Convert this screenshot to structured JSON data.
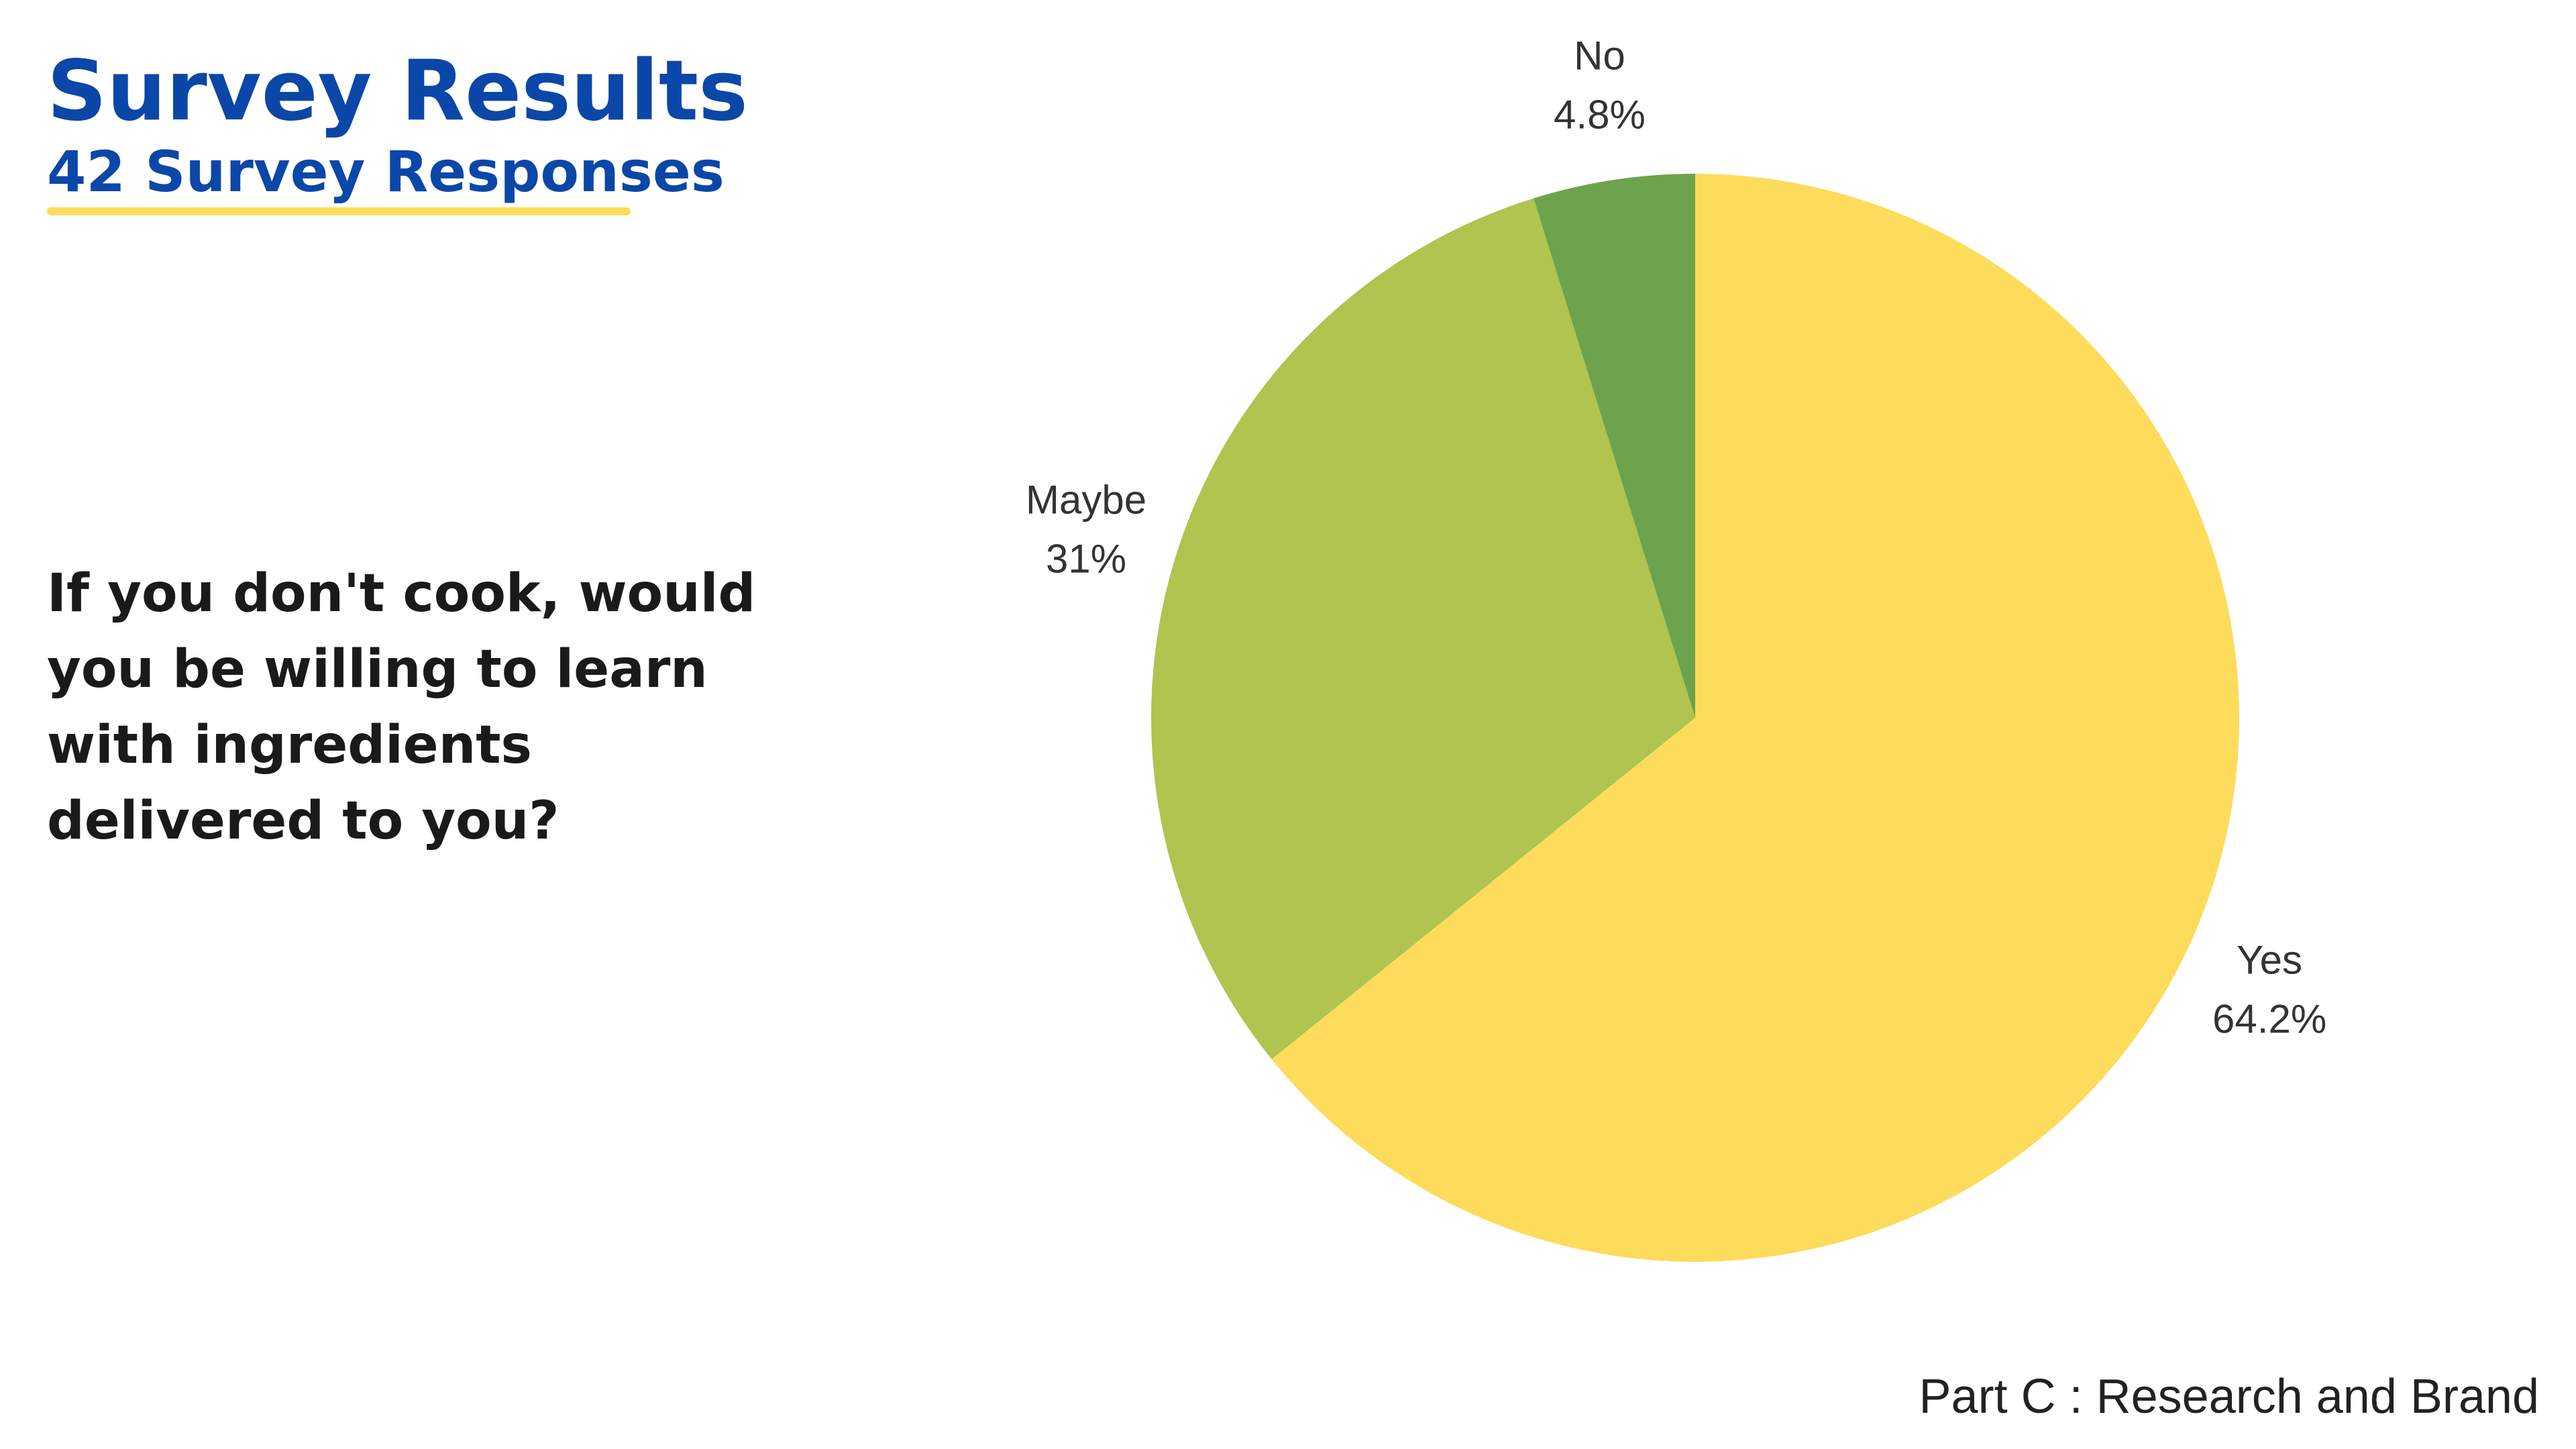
{
  "chart_data": {
    "type": "pie",
    "title": "Survey Results",
    "subtitle": "42 Survey Responses",
    "question": [
      "If you don't cook, would",
      "you be willing to learn",
      "with ingredients",
      "delivered to you?"
    ],
    "footer": "Part C : Research and Brand",
    "categories": [
      "Yes",
      "Maybe",
      "No"
    ],
    "values": [
      64.2,
      31,
      4.8
    ],
    "value_labels": [
      "64.2%",
      "31%",
      "4.8%"
    ],
    "colors": [
      "#FDDC5C",
      "#B0C44F",
      "#6CA34C"
    ]
  }
}
